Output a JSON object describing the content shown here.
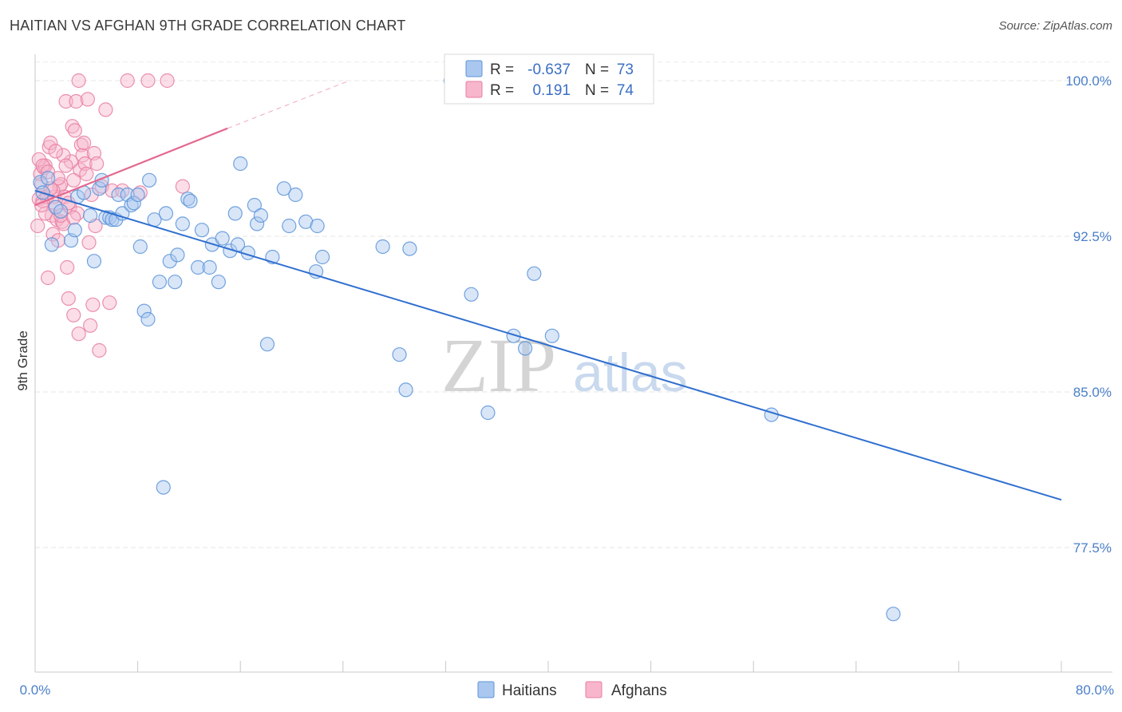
{
  "header": {
    "title": "HAITIAN VS AFGHAN 9TH GRADE CORRELATION CHART",
    "source": "Source: ZipAtlas.com"
  },
  "watermark": {
    "zip": "ZIP",
    "atlas": "atlas"
  },
  "legend": {
    "rows": [
      {
        "r_label": "R =",
        "r_value": "-0.637",
        "n_label": "N =",
        "n_value": "73",
        "color": "#aac8ef"
      },
      {
        "r_label": "R =",
        "r_value": "0.191",
        "n_label": "N =",
        "n_value": "74",
        "color": "#f7b6cb"
      }
    ]
  },
  "chart_data": {
    "type": "scatter",
    "title": "HAITIAN VS AFGHAN 9TH GRADE CORRELATION CHART",
    "xlabel": "",
    "ylabel": "9th Grade",
    "xlim": [
      0,
      80
    ],
    "ylim": [
      71.5,
      101.5
    ],
    "x_tick_labels": [
      "0.0%",
      "80.0%"
    ],
    "y_ticks": [
      77.5,
      85.0,
      92.5,
      100.0
    ],
    "y_tick_labels": [
      "77.5%",
      "85.0%",
      "92.5%",
      "100.0%"
    ],
    "grid": true,
    "series": [
      {
        "name": "Haitians",
        "color": "#5b93d8",
        "fill": "#aac8ef",
        "trend": {
          "x0": 0,
          "y0": 94.7,
          "x1": 80,
          "y1": 79.8
        },
        "points": [
          [
            0.4,
            95.1
          ],
          [
            0.6,
            94.6
          ],
          [
            1.0,
            95.3
          ],
          [
            1.3,
            92.1
          ],
          [
            1.6,
            93.9
          ],
          [
            2.0,
            93.7
          ],
          [
            2.8,
            92.3
          ],
          [
            3.1,
            92.8
          ],
          [
            3.3,
            94.4
          ],
          [
            3.8,
            94.6
          ],
          [
            4.3,
            93.5
          ],
          [
            4.6,
            91.3
          ],
          [
            5.0,
            94.8
          ],
          [
            5.2,
            95.2
          ],
          [
            5.5,
            93.4
          ],
          [
            5.8,
            93.4
          ],
          [
            6.0,
            93.3
          ],
          [
            6.3,
            93.3
          ],
          [
            6.5,
            94.5
          ],
          [
            6.8,
            93.6
          ],
          [
            7.2,
            94.5
          ],
          [
            7.5,
            94.0
          ],
          [
            7.7,
            94.1
          ],
          [
            8.0,
            94.5
          ],
          [
            8.2,
            92.0
          ],
          [
            8.5,
            88.9
          ],
          [
            8.8,
            88.5
          ],
          [
            8.9,
            95.2
          ],
          [
            9.3,
            93.3
          ],
          [
            9.7,
            90.3
          ],
          [
            10.0,
            80.4
          ],
          [
            10.2,
            93.6
          ],
          [
            10.5,
            91.3
          ],
          [
            10.9,
            90.3
          ],
          [
            11.1,
            91.6
          ],
          [
            11.5,
            93.1
          ],
          [
            11.9,
            94.3
          ],
          [
            12.1,
            94.2
          ],
          [
            12.7,
            91.0
          ],
          [
            13.0,
            92.8
          ],
          [
            13.6,
            91.0
          ],
          [
            13.8,
            92.1
          ],
          [
            14.3,
            90.3
          ],
          [
            14.6,
            92.4
          ],
          [
            15.2,
            91.8
          ],
          [
            15.6,
            93.6
          ],
          [
            15.8,
            92.1
          ],
          [
            16.0,
            96.0
          ],
          [
            16.6,
            91.7
          ],
          [
            17.1,
            94.0
          ],
          [
            17.3,
            93.1
          ],
          [
            17.6,
            93.5
          ],
          [
            18.1,
            87.3
          ],
          [
            18.5,
            91.5
          ],
          [
            19.4,
            94.8
          ],
          [
            19.8,
            93.0
          ],
          [
            20.3,
            94.5
          ],
          [
            21.1,
            93.2
          ],
          [
            21.9,
            90.8
          ],
          [
            22.0,
            93.0
          ],
          [
            22.4,
            91.5
          ],
          [
            27.1,
            92.0
          ],
          [
            28.4,
            86.8
          ],
          [
            28.9,
            85.1
          ],
          [
            29.2,
            91.9
          ],
          [
            32.4,
            100.0
          ],
          [
            34.0,
            89.7
          ],
          [
            35.3,
            84.0
          ],
          [
            37.3,
            87.7
          ],
          [
            38.2,
            87.1
          ],
          [
            38.9,
            90.7
          ],
          [
            40.3,
            87.7
          ],
          [
            57.4,
            83.9
          ],
          [
            66.9,
            74.3
          ]
        ]
      },
      {
        "name": "Afghans",
        "color": "#e87ea0",
        "fill": "#f7b6cb",
        "trend": {
          "x0": 0,
          "y0": 94.0,
          "x1": 15,
          "y1": 97.7
        },
        "trend_dashed": {
          "x0": 15,
          "y0": 97.7,
          "x1": 24.5,
          "y1": 100.0
        },
        "points": [
          [
            0.2,
            93.0
          ],
          [
            0.3,
            94.3
          ],
          [
            0.4,
            95.5
          ],
          [
            0.5,
            95.0
          ],
          [
            0.6,
            94.2
          ],
          [
            0.7,
            95.8
          ],
          [
            0.8,
            95.9
          ],
          [
            0.9,
            94.4
          ],
          [
            1.0,
            90.5
          ],
          [
            1.1,
            96.8
          ],
          [
            1.2,
            97.0
          ],
          [
            1.3,
            93.5
          ],
          [
            1.4,
            92.6
          ],
          [
            1.5,
            94.4
          ],
          [
            1.6,
            93.9
          ],
          [
            1.7,
            93.3
          ],
          [
            1.8,
            92.3
          ],
          [
            1.9,
            94.9
          ],
          [
            2.0,
            95.0
          ],
          [
            2.1,
            93.2
          ],
          [
            2.2,
            93.1
          ],
          [
            2.3,
            94.4
          ],
          [
            2.4,
            99.0
          ],
          [
            2.5,
            91.0
          ],
          [
            2.6,
            89.5
          ],
          [
            2.7,
            93.9
          ],
          [
            2.8,
            96.1
          ],
          [
            2.9,
            97.8
          ],
          [
            3.0,
            88.7
          ],
          [
            3.1,
            97.6
          ],
          [
            3.2,
            99.0
          ],
          [
            3.3,
            93.6
          ],
          [
            3.4,
            87.8
          ],
          [
            3.5,
            95.7
          ],
          [
            3.6,
            96.9
          ],
          [
            3.7,
            96.4
          ],
          [
            3.8,
            97.0
          ],
          [
            3.9,
            96.0
          ],
          [
            4.0,
            95.5
          ],
          [
            4.1,
            99.1
          ],
          [
            4.2,
            92.2
          ],
          [
            4.3,
            88.2
          ],
          [
            4.4,
            94.5
          ],
          [
            4.5,
            89.2
          ],
          [
            4.6,
            96.5
          ],
          [
            4.7,
            93.0
          ],
          [
            4.8,
            96.0
          ],
          [
            5.0,
            87.0
          ],
          [
            5.2,
            94.9
          ],
          [
            5.5,
            98.6
          ],
          [
            5.8,
            89.3
          ],
          [
            6.0,
            94.7
          ],
          [
            6.8,
            94.7
          ],
          [
            7.2,
            100.0
          ],
          [
            8.2,
            94.6
          ],
          [
            8.8,
            100.0
          ],
          [
            10.3,
            100.0
          ],
          [
            11.5,
            94.9
          ],
          [
            0.3,
            96.2
          ],
          [
            0.6,
            95.9
          ],
          [
            1.0,
            95.6
          ],
          [
            1.4,
            94.7
          ],
          [
            1.8,
            95.3
          ],
          [
            2.2,
            96.4
          ],
          [
            2.6,
            94.1
          ],
          [
            3.0,
            95.2
          ],
          [
            3.4,
            100.0
          ],
          [
            1.2,
            94.8
          ],
          [
            0.8,
            93.6
          ],
          [
            2.0,
            93.5
          ],
          [
            3.0,
            93.4
          ],
          [
            1.6,
            96.6
          ],
          [
            2.4,
            95.9
          ],
          [
            0.5,
            94.0
          ]
        ]
      }
    ]
  }
}
